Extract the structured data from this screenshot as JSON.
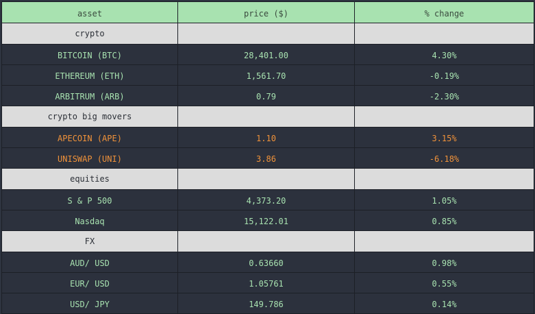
{
  "table": {
    "columns": [
      "asset",
      "price ($)",
      "% change"
    ],
    "sections": [
      {
        "label": "crypto",
        "rows": [
          {
            "asset": "BITCOIN (BTC)",
            "price": "28,401.00",
            "change": "4.30%"
          },
          {
            "asset": "ETHEREUM (ETH)",
            "price": "1,561.70",
            "change": "-0.19%"
          },
          {
            "asset": "ARBITRUM (ARB)",
            "price": "0.79",
            "change": "-2.30%"
          }
        ]
      },
      {
        "label": "crypto big movers",
        "highlight": true,
        "rows": [
          {
            "asset": "APECOIN (APE)",
            "price": "1.10",
            "change": "3.15%"
          },
          {
            "asset": "UNISWAP (UNI)",
            "price": "3.86",
            "change": "-6.18%"
          }
        ]
      },
      {
        "label": "equities",
        "rows": [
          {
            "asset": "S & P 500",
            "price": "4,373.20",
            "change": "1.05%"
          },
          {
            "asset": "Nasdaq",
            "price": "15,122.01",
            "change": "0.85%"
          }
        ]
      },
      {
        "label": "FX",
        "rows": [
          {
            "asset": "AUD/ USD",
            "price": "0.63660",
            "change": "0.98%"
          },
          {
            "asset": "EUR/ USD",
            "price": "1.05761",
            "change": "0.55%"
          },
          {
            "asset": "USD/ JPY",
            "price": "149.786",
            "change": "0.14%"
          }
        ]
      }
    ]
  },
  "colors": {
    "header_bg": "#a8e2b0",
    "section_bg": "#dcdcdc",
    "row_bg": "#2c313d",
    "text_green": "#a8e2b0",
    "text_orange": "#f0923a"
  }
}
